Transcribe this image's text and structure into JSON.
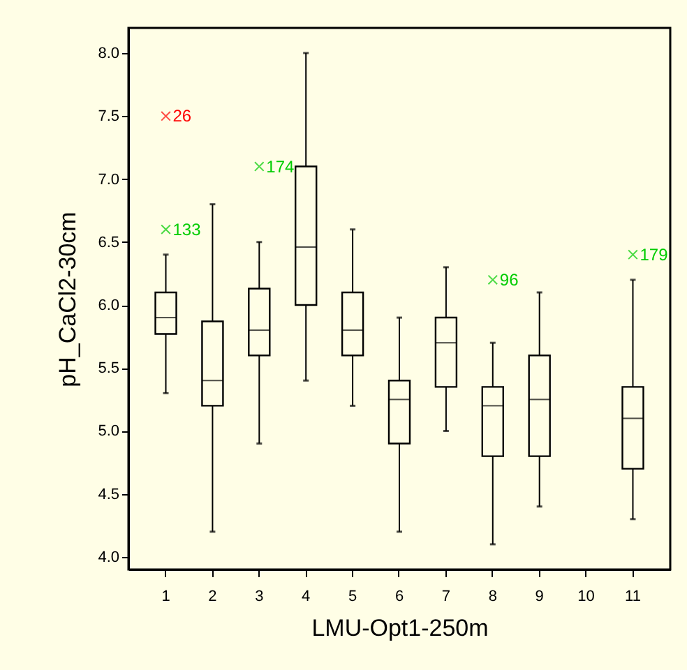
{
  "chart_data": {
    "type": "box",
    "xlabel": "LMU-Opt1-250m",
    "ylabel": "pH_CaCl2-30cm",
    "categories": [
      "1",
      "2",
      "3",
      "4",
      "5",
      "6",
      "7",
      "8",
      "9",
      "10",
      "11"
    ],
    "boxes": [
      {
        "low": 5.3,
        "q1": 5.77,
        "median": 5.9,
        "q3": 6.1,
        "high": 6.4
      },
      {
        "low": 4.2,
        "q1": 5.2,
        "median": 5.4,
        "q3": 5.87,
        "high": 6.8
      },
      {
        "low": 4.9,
        "q1": 5.6,
        "median": 5.8,
        "q3": 6.13,
        "high": 6.5
      },
      {
        "low": 5.4,
        "q1": 6.0,
        "median": 6.46,
        "q3": 7.1,
        "high": 8.0
      },
      {
        "low": 5.2,
        "q1": 5.6,
        "median": 5.8,
        "q3": 6.1,
        "high": 6.6
      },
      {
        "low": 4.2,
        "q1": 4.9,
        "median": 5.25,
        "q3": 5.4,
        "high": 5.9
      },
      {
        "low": 5.0,
        "q1": 5.35,
        "median": 5.7,
        "q3": 5.9,
        "high": 6.3
      },
      {
        "low": 4.1,
        "q1": 4.8,
        "median": 5.2,
        "q3": 5.35,
        "high": 5.7
      },
      {
        "low": 4.4,
        "q1": 4.8,
        "median": 5.25,
        "q3": 5.6,
        "high": 6.1
      },
      null,
      {
        "low": 4.3,
        "q1": 4.7,
        "median": 5.1,
        "q3": 5.35,
        "high": 6.2
      }
    ],
    "series": [
      {
        "type": "scatter",
        "color": "#ff0000",
        "x": [
          "1"
        ],
        "values": [
          7.5
        ]
      },
      {
        "type": "scatter",
        "color": "#00cc00",
        "x": [
          "1",
          "3",
          "8",
          "11"
        ],
        "values": [
          6.6,
          7.1,
          6.2,
          6.4
        ]
      }
    ],
    "annotations": [
      {
        "text": "26",
        "x": "1",
        "y": 7.5
      },
      {
        "text": "133",
        "x": "1",
        "y": 6.6
      },
      {
        "text": "174",
        "x": "3",
        "y": 7.1
      },
      {
        "text": "96",
        "x": "8",
        "y": 6.2
      },
      {
        "text": "179",
        "x": "11",
        "y": 6.4
      }
    ],
    "marker": "cross",
    "ylim": [
      3.9,
      8.2
    ],
    "yticks": [
      {
        "value": 4,
        "label": "4.0"
      },
      {
        "value": 4.5,
        "label": "4.5"
      },
      {
        "value": 5,
        "label": "5.0"
      },
      {
        "value": 5.5,
        "label": "5.5"
      },
      {
        "value": 6,
        "label": "6.0"
      },
      {
        "value": 6.5,
        "label": "6.5"
      },
      {
        "value": 7,
        "label": "7.0"
      },
      {
        "value": 7.5,
        "label": "7.5"
      },
      {
        "value": 8,
        "label": "8.0"
      }
    ],
    "grid": false
  }
}
